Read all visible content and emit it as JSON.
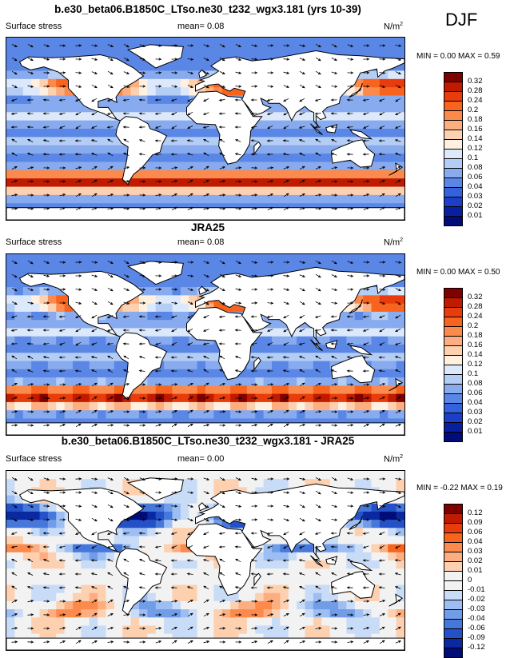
{
  "season_label": "DJF",
  "panels": [
    {
      "title": "b.e30_beta06.B1850C_LTso.ne30_t232_wgx3.181 (yrs 10-39)",
      "variable": "Surface stress",
      "mean_label": "mean=",
      "mean_value": "0.08",
      "units": "N/m",
      "units_sup": "2",
      "minmax": "MIN =  0.00 MAX =  0.59",
      "colorbar_levels": [
        "0.32",
        "0.28",
        "0.24",
        "0.2",
        "0.18",
        "0.16",
        "0.14",
        "0.12",
        "0.1",
        "0.08",
        "0.06",
        "0.04",
        "0.03",
        "0.02",
        "0.01"
      ]
    },
    {
      "title": "JRA25",
      "variable": "Surface stress",
      "mean_label": "mean=",
      "mean_value": "0.08",
      "units": "N/m",
      "units_sup": "2",
      "minmax": "MIN =  0.00 MAX =  0.50",
      "colorbar_levels": [
        "0.32",
        "0.28",
        "0.24",
        "0.2",
        "0.18",
        "0.16",
        "0.14",
        "0.12",
        "0.1",
        "0.08",
        "0.06",
        "0.04",
        "0.03",
        "0.02",
        "0.01"
      ]
    },
    {
      "title": "b.e30_beta06.B1850C_LTso.ne30_t232_wgx3.181 - JRA25",
      "variable": "Surface stress",
      "mean_label": "mean=",
      "mean_value": "0.00",
      "units": "N/m",
      "units_sup": "2",
      "minmax": "MIN = -0.22 MAX =  0.19",
      "colorbar_levels": [
        "0.12",
        "0.09",
        "0.06",
        "0.04",
        "0.03",
        "0.02",
        "0.01",
        "0",
        "-0.01",
        "-0.02",
        "-0.03",
        "-0.04",
        "-0.06",
        "-0.09",
        "-0.12"
      ]
    }
  ],
  "colors": {
    "sequential": [
      "#7f0000",
      "#c01a00",
      "#e83c0c",
      "#f8641e",
      "#fb8a4c",
      "#fcae80",
      "#fdd0b0",
      "#fff0e0",
      "#dce8fb",
      "#b4cdf5",
      "#88aaee",
      "#5a86e6",
      "#3462dc",
      "#1c3ec8",
      "#0a1ea0",
      "#000c78"
    ],
    "diverging": [
      "#7f0000",
      "#c01a00",
      "#e83c0c",
      "#f8641e",
      "#fb8a4c",
      "#fcae80",
      "#fdd0b0",
      "#f2f2f2",
      "#f2f2f2",
      "#c8dcf8",
      "#9cbef2",
      "#709ce8",
      "#4678dc",
      "#2450c8",
      "#0a28a0",
      "#000c78"
    ],
    "land": "#ffffff",
    "coast": "#000000"
  },
  "chart_data": [
    {
      "type": "heatmap",
      "title": "b.e30_beta06.B1850C_LTso.ne30_t232_wgx3.181 (yrs 10-39)",
      "variable": "Surface stress",
      "units": "N/m2",
      "mean": 0.08,
      "min": 0.0,
      "max": 0.59,
      "levels": [
        0.01,
        0.02,
        0.03,
        0.04,
        0.06,
        0.08,
        0.1,
        0.12,
        0.14,
        0.16,
        0.18,
        0.2,
        0.24,
        0.28,
        0.32
      ],
      "overlay": "wind stress vectors",
      "pattern": "strong (>0.2) westerly stress over Southern Ocean 40-60S and North Pacific/Atlantic storm tracks; weak (<0.06) in tropics and doldrums"
    },
    {
      "type": "heatmap",
      "title": "JRA25",
      "variable": "Surface stress",
      "units": "N/m2",
      "mean": 0.08,
      "min": 0.0,
      "max": 0.5,
      "levels": [
        0.01,
        0.02,
        0.03,
        0.04,
        0.06,
        0.08,
        0.1,
        0.12,
        0.14,
        0.16,
        0.18,
        0.2,
        0.24,
        0.28,
        0.32
      ],
      "overlay": "wind stress vectors",
      "pattern": "strong stress over Southern Ocean, North Pacific, North Atlantic and topography; weak in tropics"
    },
    {
      "type": "heatmap",
      "title": "b.e30_beta06.B1850C_LTso.ne30_t232_wgx3.181 - JRA25",
      "variable": "Surface stress",
      "units": "N/m2",
      "mean": 0.0,
      "min": -0.22,
      "max": 0.19,
      "levels": [
        -0.12,
        -0.09,
        -0.06,
        -0.04,
        -0.03,
        -0.02,
        -0.01,
        0,
        0.01,
        0.02,
        0.03,
        0.04,
        0.06,
        0.09,
        0.12
      ],
      "overlay": "wind stress difference vectors",
      "pattern": "negative (model weaker) over North Pacific and North Atlantic; positive in tropical Pacific bands and Southern Ocean"
    }
  ]
}
